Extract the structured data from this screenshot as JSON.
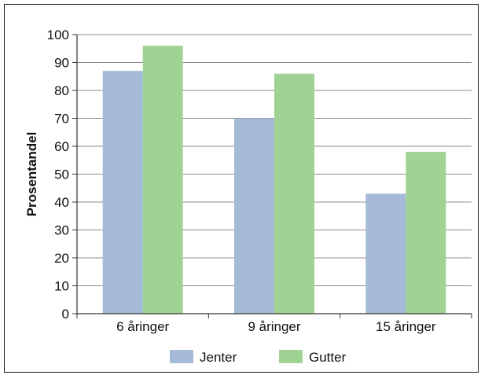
{
  "chart_data": {
    "type": "bar",
    "categories": [
      "6 åringer",
      "9 åringer",
      "15 åringer"
    ],
    "series": [
      {
        "name": "Jenter",
        "values": [
          87,
          70,
          43
        ],
        "color": "#a5bad7"
      },
      {
        "name": "Gutter",
        "values": [
          96,
          86,
          58
        ],
        "color": "#a0d393"
      }
    ],
    "title": "",
    "xlabel": "",
    "ylabel": "Prosentandel",
    "ylim": [
      0,
      100
    ],
    "yticks": [
      0,
      10,
      20,
      30,
      40,
      50,
      60,
      70,
      80,
      90,
      100
    ],
    "grid": true,
    "legend_position": "bottom"
  }
}
